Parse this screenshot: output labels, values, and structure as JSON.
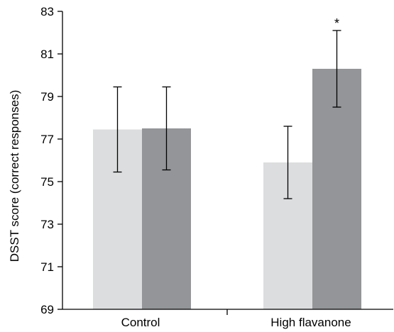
{
  "chart_data": {
    "type": "bar",
    "title": "",
    "ylabel": "DSST score (correct responses)",
    "xlabel": "",
    "categories": [
      "Control",
      "High flavanone"
    ],
    "ylim": [
      69,
      83
    ],
    "yticks": [
      69,
      71,
      73,
      75,
      77,
      79,
      81,
      83
    ],
    "grid": false,
    "legend": "none",
    "series": [
      {
        "color": "#dcdddf",
        "values": [
          77.45,
          75.9
        ],
        "error": [
          2.0,
          1.7
        ]
      },
      {
        "color": "#939598",
        "values": [
          77.5,
          80.3
        ],
        "error": [
          1.95,
          1.8
        ]
      }
    ],
    "annotations": [
      {
        "category": "High flavanone",
        "series": 1,
        "text": "*"
      }
    ]
  }
}
